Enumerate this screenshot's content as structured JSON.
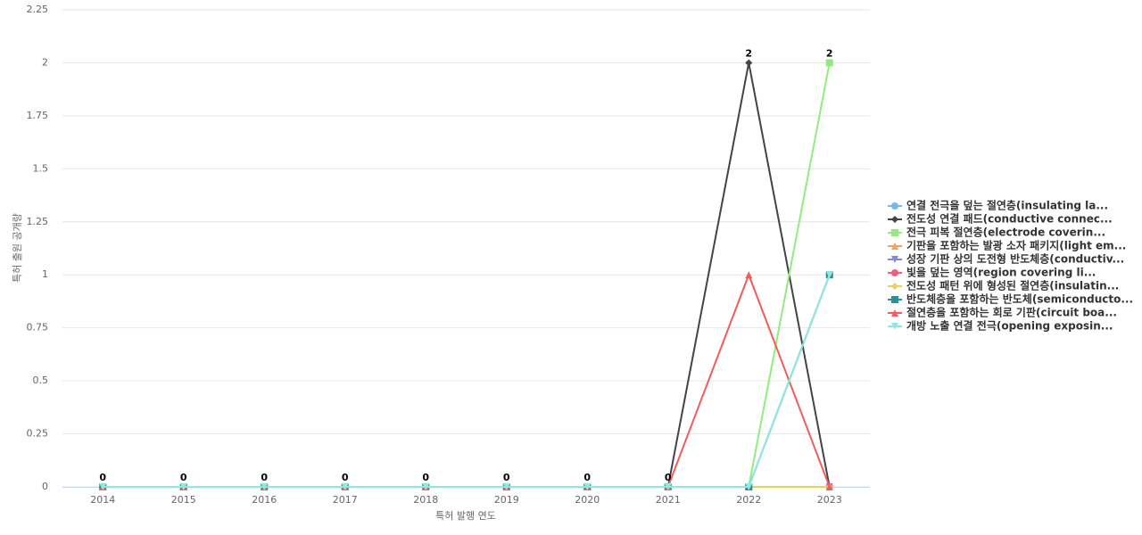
{
  "chart_data": {
    "type": "line",
    "x_label": "특허 발행 연도",
    "y_label": "특허 출원 공개량",
    "categories": [
      "2014",
      "2015",
      "2016",
      "2017",
      "2018",
      "2019",
      "2020",
      "2021",
      "2022",
      "2023"
    ],
    "ylim": [
      0,
      2.25
    ],
    "yticks": [
      0,
      0.25,
      0.5,
      0.75,
      1,
      1.25,
      1.5,
      1.75,
      2,
      2.25
    ],
    "grid": true,
    "legend": "right",
    "series": [
      {
        "name": "연결 전극을 덮는 절연층(insulating la...",
        "color": "#7cb5ec",
        "values": [
          0,
          0,
          0,
          0,
          0,
          0,
          0,
          0,
          0,
          0
        ]
      },
      {
        "name": "전도성 연결 패드(conductive connec...",
        "color": "#434348",
        "values": [
          0,
          0,
          0,
          0,
          0,
          0,
          0,
          0,
          2,
          0
        ]
      },
      {
        "name": "전극 피복 절연층(electrode coverin...",
        "color": "#90ed7d",
        "values": [
          0,
          0,
          0,
          0,
          0,
          0,
          0,
          0,
          0,
          2
        ]
      },
      {
        "name": "기판을 포함하는 발광 소자 패키지(light em...",
        "color": "#f7a35c",
        "values": [
          0,
          0,
          0,
          0,
          0,
          0,
          0,
          0,
          0,
          0
        ]
      },
      {
        "name": "성장 기판 상의 도전형 반도체층(conductiv...",
        "color": "#8085e9",
        "values": [
          0,
          0,
          0,
          0,
          0,
          0,
          0,
          0,
          0,
          0
        ]
      },
      {
        "name": "빛을 덮는 영역(region covering li...",
        "color": "#f15c80",
        "values": [
          0,
          0,
          0,
          0,
          0,
          0,
          0,
          0,
          0,
          0
        ]
      },
      {
        "name": "전도성 패턴 위에 형성된 절연층(insulatin...",
        "color": "#e4d354",
        "values": [
          0,
          0,
          0,
          0,
          0,
          0,
          0,
          0,
          0,
          0
        ]
      },
      {
        "name": "반도체층을 포함하는 반도체(semiconducto...",
        "color": "#2b908f",
        "values": [
          0,
          0,
          0,
          0,
          0,
          0,
          0,
          0,
          0,
          1
        ]
      },
      {
        "name": "절연층을 포함하는 회로 기판(circuit boa...",
        "color": "#f45b5b",
        "values": [
          0,
          0,
          0,
          0,
          0,
          0,
          0,
          0,
          1,
          0
        ]
      },
      {
        "name": "개방 노출 연결 전극(opening exposin...",
        "color": "#91e8e1",
        "values": [
          0,
          0,
          0,
          0,
          0,
          0,
          0,
          0,
          0,
          1
        ]
      }
    ]
  }
}
